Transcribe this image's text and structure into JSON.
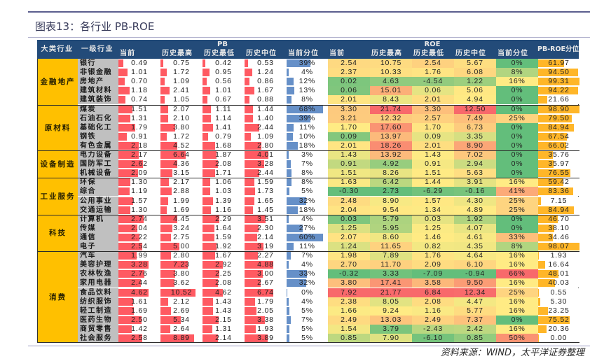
{
  "title": "图表13：各行业 PB-ROE",
  "source": "资料来源：WIND，太平洋证券整理",
  "chart_data": {
    "type": "table",
    "title": "图表13：各行业 PB-ROE",
    "header": {
      "sector": "大类行业",
      "industry": "一级行业",
      "pb_group": "PB",
      "roe_group": "ROE",
      "pb_columns": [
        "当前",
        "历史最高",
        "历史最低",
        "历史中位",
        "当前分位"
      ],
      "roe_columns": [
        "当前",
        "历史最高",
        "历史最低",
        "历史中位",
        "当前分位"
      ],
      "pb_roe": "PB-ROE分位"
    },
    "groups": [
      {
        "name": "金融地产",
        "rows": [
          {
            "industry": "银行",
            "pb": [
              "0.49",
              "0.75",
              "0.42",
              "0.53",
              "39%"
            ],
            "roe": [
              "2.54",
              "10.75",
              "2.54",
              "5.67",
              "0%"
            ],
            "pb_roe": "61.97"
          },
          {
            "industry": "非银金融",
            "pb": [
              "1.01",
              "1.72",
              "0.95",
              "1.24",
              "4%"
            ],
            "roe": [
              "2.37",
              "10.33",
              "1.76",
              "6.08",
              "8%"
            ],
            "pb_roe": "94.50"
          },
          {
            "industry": "房地产",
            "pb": [
              "0.70",
              "1.09",
              "0.56",
              "0.86",
              "12%"
            ],
            "roe": [
              "0.02",
              "4.63",
              "-4.54",
              "1.22",
              "16%"
            ],
            "pb_roe": "99.31"
          },
          {
            "industry": "建筑材料",
            "pb": [
              "1.18",
              "2.41",
              "1.01",
              "1.67",
              "13%"
            ],
            "roe": [
              "0.06",
              "15.01",
              "0.06",
              "5.06",
              "0%"
            ],
            "pb_roe": "94.22"
          },
          {
            "industry": "建筑装饰",
            "pb": [
              "0.74",
              "1.05",
              "0.67",
              "0.88",
              "8%"
            ],
            "roe": [
              "2.01",
              "8.43",
              "2.01",
              "4.94",
              "0%"
            ],
            "pb_roe": "21.66"
          }
        ]
      },
      {
        "name": "原材料",
        "rows": [
          {
            "industry": "煤炭",
            "pb": [
              "1.51",
              "2.07",
              "1.11",
              "1.44",
              "68%"
            ],
            "roe": [
              "3.30",
              "21.74",
              "3.30",
              "12.50",
              "0%"
            ],
            "pb_roe": "98.90"
          },
          {
            "industry": "石油石化",
            "pb": [
              "1.31",
              "2.10",
              "1.14",
              "1.40",
              "39%"
            ],
            "roe": [
              "3.21",
              "12.32",
              "2.57",
              "7.49",
              "25%"
            ],
            "pb_roe": "79.50"
          },
          {
            "industry": "基础化工",
            "pb": [
              "1.79",
              "3.80",
              "1.41",
              "2.44",
              "11%"
            ],
            "roe": [
              "1.70",
              "17.60",
              "1.70",
              "6.73",
              "0%"
            ],
            "pb_roe": "84.94"
          },
          {
            "industry": "钢铁",
            "pb": [
              "0.91",
              "1.72",
              "0.79",
              "1.09",
              "10%"
            ],
            "roe": [
              "0.09",
              "13.97",
              "0.09",
              "3.35",
              "0%"
            ],
            "pb_roe": "67.54"
          },
          {
            "industry": "有色金属",
            "pb": [
              "2.18",
              "4.52",
              "1.68",
              "2.80",
              "18%"
            ],
            "roe": [
              "2.01",
              "18.26",
              "2.01",
              "8.90",
              "0%"
            ],
            "pb_roe": "66.02"
          }
        ]
      },
      {
        "name": "设备制造",
        "rows": [
          {
            "industry": "电力设备",
            "pb": [
              "2.17",
              "6.64",
              "1.87",
              "4.01",
              "3%"
            ],
            "roe": [
              "1.43",
              "13.92",
              "1.43",
              "7.02",
              "0%"
            ],
            "pb_roe": "35.76"
          },
          {
            "industry": "国防军工",
            "pb": [
              "2.62",
              "4.36",
              "2.08",
              "3.28",
              "7%"
            ],
            "roe": [
              "0.91",
              "4.92",
              "0.91",
              "2.94",
              "0%"
            ],
            "pb_roe": "35.97"
          },
          {
            "industry": "机械设备",
            "pb": [
              "2.09",
              "3.15",
              "1.71",
              "2.44",
              "8%"
            ],
            "roe": [
              "1.51",
              "8.26",
              "1.51",
              "5.63",
              "0%"
            ],
            "pb_roe": "76.55"
          }
        ]
      },
      {
        "name": "工业服务",
        "rows": [
          {
            "industry": "环保",
            "pb": [
              "1.30",
              "2.17",
              "1.06",
              "1.59",
              "8%"
            ],
            "roe": [
              "1.63",
              "6.42",
              "1.44",
              "3.91",
              "16%"
            ],
            "pb_roe": "59.42"
          },
          {
            "industry": "综合",
            "pb": [
              "1.19",
              "2.88",
              "1.03",
              "1.73",
              "5%"
            ],
            "roe": [
              "-0.30",
              "2.73",
              "-6.29",
              "-0.16",
              "41%"
            ],
            "pb_roe": "83.36"
          },
          {
            "industry": "公用事业",
            "pb": [
              "1.57",
              "1.99",
              "1.39",
              "1.65",
              "32%"
            ],
            "roe": [
              "2.48",
              "8.90",
              "1.57",
              "4.30",
              "25%"
            ],
            "pb_roe": "7.15"
          },
          {
            "industry": "交通运输",
            "pb": [
              "1.30",
              "1.69",
              "1.16",
              "1.45",
              "18%"
            ],
            "roe": [
              "2.04",
              "9.54",
              "1.34",
              "4.89",
              "25%"
            ],
            "pb_roe": "84.94"
          }
        ]
      },
      {
        "name": "科技",
        "rows": [
          {
            "industry": "计算机",
            "pb": [
              "2.74",
              "4.45",
              "2.29",
              "3.51",
              "4%"
            ],
            "roe": [
              "0.03",
              "5.79",
              "0.03",
              "1.92",
              "0%"
            ],
            "pb_roe": "46.70"
          },
          {
            "industry": "传媒",
            "pb": [
              "2.04",
              "3.24",
              "1.64",
              "2.30",
              "27%"
            ],
            "roe": [
              "1.25",
              "5.95",
              "1.25",
              "4.07",
              "0%"
            ],
            "pb_roe": "38.10"
          },
          {
            "industry": "通信",
            "pb": [
              "2.22",
              "2.75",
              "1.59",
              "2.14",
              "60%"
            ],
            "roe": [
              "2.07",
              "8.60",
              "1.46",
              "4.61",
              "33%"
            ],
            "pb_roe": "34.46"
          },
          {
            "industry": "电子",
            "pb": [
              "2.54",
              "5.00",
              "1.92",
              "3.19",
              "11%"
            ],
            "roe": [
              "1.24",
              "11.65",
              "0.82",
              "4.35",
              "8%"
            ],
            "pb_roe": "98.07"
          }
        ]
      },
      {
        "name": "消费",
        "rows": [
          {
            "industry": "汽车",
            "pb": [
              "1.99",
              "2.80",
              "1.67",
              "2.27",
              "7%"
            ],
            "roe": [
              "1.98",
              "7.89",
              "1.76",
              "4.64",
              "16%"
            ],
            "pb_roe": "1.93"
          },
          {
            "industry": "美容护理",
            "pb": [
              "3.28",
              "7.23",
              "2.92",
              "4.88",
              "4%"
            ],
            "roe": [
              "2.70",
              "11.70",
              "2.09",
              "6.10",
              "16%"
            ],
            "pb_roe": "16.64"
          },
          {
            "industry": "农林牧渔",
            "pb": [
              "2.76",
              "3.80",
              "2.25",
              "3.00",
              "33%"
            ],
            "roe": [
              "-0.32",
              "3.33",
              "-7.09",
              "-0.94",
              "66%"
            ],
            "pb_roe": "48.01"
          },
          {
            "industry": "家用电器",
            "pb": [
              "2.44",
              "3.62",
              "2.08",
              "2.67",
              "32%"
            ],
            "roe": [
              "3.80",
              "17.41",
              "3.58",
              "9.50",
              "16%"
            ],
            "pb_roe": "40.03"
          },
          {
            "industry": "食品饮料",
            "pb": [
              "4.62",
              "10.52",
              "4.62",
              "6.74",
              "0%"
            ],
            "roe": [
              "7.92",
              "21.77",
              "6.84",
              "12.34",
              "25%"
            ],
            "pb_roe": "0.55"
          },
          {
            "industry": "纺织服饰",
            "pb": [
              "1.61",
              "2.12",
              "1.43",
              "1.79",
              "4%"
            ],
            "roe": [
              "2.38",
              "8.05",
              "2.08",
              "4.47",
              "16%"
            ],
            "pb_roe": "5.30"
          },
          {
            "industry": "轻工制造",
            "pb": [
              "1.69",
              "2.69",
              "1.43",
              "2.05",
              "5%"
            ],
            "roe": [
              "1.66",
              "9.24",
              "1.16",
              "5.77",
              "16%"
            ],
            "pb_roe": "23.25"
          },
          {
            "industry": "医药生物",
            "pb": [
              "2.50",
              "5.34",
              "2.15",
              "3.38",
              "7%"
            ],
            "roe": [
              "2.49",
              "13.03",
              "2.49",
              "7.37",
              "0%"
            ],
            "pb_roe": "75.52"
          },
          {
            "industry": "商贸零售",
            "pb": [
              "1.42",
              "2.64",
              "1.31",
              "1.93",
              "5%"
            ],
            "roe": [
              "1.54",
              "3.79",
              "-2.43",
              "2.42",
              "16%"
            ],
            "pb_roe": "20.36"
          },
          {
            "industry": "社会服务",
            "pb": [
              "2.58",
              "8.89",
              "2.14",
              "3.89",
              "5%"
            ],
            "roe": [
              "0.85",
              "7.90",
              "-6.10",
              "0.85",
              "50%"
            ],
            "pb_roe": "0.00"
          }
        ]
      }
    ]
  }
}
